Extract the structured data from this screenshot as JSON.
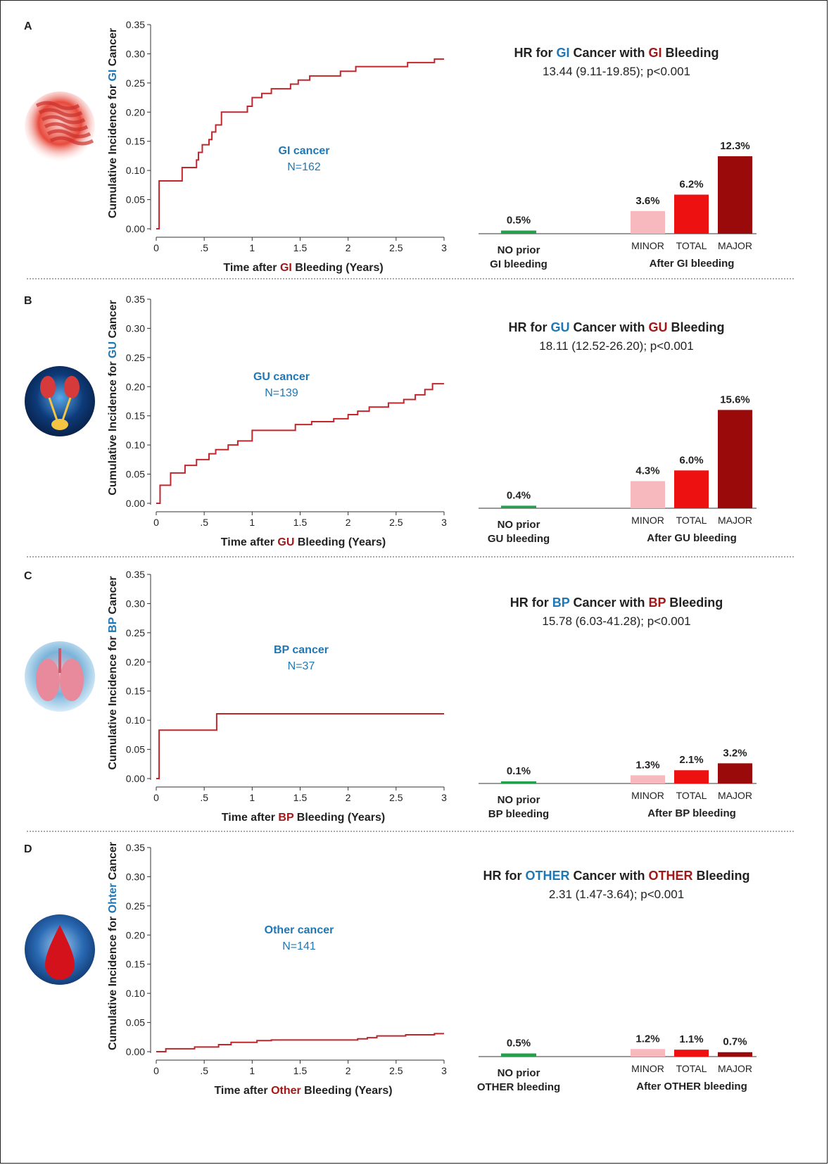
{
  "colors": {
    "km_line": "#c0272d",
    "cancer_label": "#1f77b4",
    "bleeding_word": "#a01818",
    "no_prior_bar": "#22a04b",
    "minor_bar": "#f7b8be",
    "total_bar": "#ee1111",
    "major_bar": "#9a0a0a",
    "axis": "#333333"
  },
  "chart_data": [
    {
      "panel": "A",
      "km": {
        "type": "line",
        "ylabel_parts": [
          "Cumulative Incidence for ",
          "GI",
          " Cancer"
        ],
        "xlabel_parts": [
          "Time after ",
          "GI",
          " Bleeding (Years)"
        ],
        "xticks": [
          0,
          0.5,
          1,
          1.5,
          2,
          2.5,
          3
        ],
        "xtick_labels": [
          "0",
          ".5",
          "1",
          "1.5",
          "2",
          "2.5",
          "3"
        ],
        "yticks": [
          0,
          0.05,
          0.1,
          0.15,
          0.2,
          0.25,
          0.3,
          0.35
        ],
        "ytick_labels": [
          "0.00",
          "0.05",
          "0.10",
          "0.15",
          "0.20",
          "0.25",
          "0.30",
          "0.35"
        ],
        "xlim": [
          0,
          3
        ],
        "ylim": [
          0,
          0.35
        ],
        "annotation": [
          "GI cancer",
          "N=162"
        ],
        "steps": [
          [
            0,
            0
          ],
          [
            0.03,
            0.082
          ],
          [
            0.27,
            0.105
          ],
          [
            0.42,
            0.118
          ],
          [
            0.44,
            0.131
          ],
          [
            0.48,
            0.144
          ],
          [
            0.55,
            0.153
          ],
          [
            0.58,
            0.166
          ],
          [
            0.62,
            0.178
          ],
          [
            0.68,
            0.2
          ],
          [
            0.95,
            0.21
          ],
          [
            1.0,
            0.225
          ],
          [
            1.1,
            0.232
          ],
          [
            1.2,
            0.24
          ],
          [
            1.4,
            0.248
          ],
          [
            1.48,
            0.255
          ],
          [
            1.6,
            0.262
          ],
          [
            1.92,
            0.27
          ],
          [
            2.08,
            0.278
          ],
          [
            2.62,
            0.285
          ],
          [
            2.9,
            0.291
          ],
          [
            3.0,
            0.291
          ]
        ]
      },
      "bars": {
        "type": "bar",
        "title_parts": [
          "HR for ",
          "GI",
          " Cancer with ",
          "GI",
          " Bleeding"
        ],
        "subtitle": "13.44 (9.11-19.85); p<0.001",
        "no_prior": {
          "value": 0.5,
          "label": "0.5%"
        },
        "no_prior_caption": [
          "NO prior",
          "GI bleeding"
        ],
        "categories": [
          "MINOR",
          "TOTAL",
          "MAJOR"
        ],
        "values": [
          3.6,
          6.2,
          12.3
        ],
        "value_labels": [
          "3.6%",
          "6.2%",
          "12.3%"
        ],
        "after_caption": "After GI bleeding"
      }
    },
    {
      "panel": "B",
      "km": {
        "type": "line",
        "ylabel_parts": [
          "Cumulative Incidence for ",
          "GU",
          " Cancer"
        ],
        "xlabel_parts": [
          "Time after ",
          "GU",
          " Bleeding (Years)"
        ],
        "xticks": [
          0,
          0.5,
          1,
          1.5,
          2,
          2.5,
          3
        ],
        "xtick_labels": [
          "0",
          ".5",
          "1",
          "1.5",
          "2",
          "2.5",
          "3"
        ],
        "yticks": [
          0,
          0.05,
          0.1,
          0.15,
          0.2,
          0.25,
          0.3,
          0.35
        ],
        "ytick_labels": [
          "0.00",
          "0.05",
          "0.10",
          "0.15",
          "0.20",
          "0.25",
          "0.30",
          "0.35"
        ],
        "xlim": [
          0,
          3
        ],
        "ylim": [
          0,
          0.35
        ],
        "annotation": [
          "GU cancer",
          "N=139"
        ],
        "steps": [
          [
            0,
            0
          ],
          [
            0.04,
            0.031
          ],
          [
            0.15,
            0.052
          ],
          [
            0.3,
            0.065
          ],
          [
            0.42,
            0.075
          ],
          [
            0.55,
            0.085
          ],
          [
            0.62,
            0.092
          ],
          [
            0.75,
            0.1
          ],
          [
            0.85,
            0.107
          ],
          [
            1.0,
            0.125
          ],
          [
            1.45,
            0.135
          ],
          [
            1.62,
            0.14
          ],
          [
            1.85,
            0.145
          ],
          [
            2.0,
            0.152
          ],
          [
            2.1,
            0.158
          ],
          [
            2.22,
            0.165
          ],
          [
            2.42,
            0.172
          ],
          [
            2.58,
            0.178
          ],
          [
            2.7,
            0.186
          ],
          [
            2.8,
            0.195
          ],
          [
            2.88,
            0.205
          ],
          [
            3.0,
            0.205
          ]
        ]
      },
      "bars": {
        "type": "bar",
        "title_parts": [
          "HR for ",
          "GU",
          " Cancer with ",
          "GU",
          " Bleeding"
        ],
        "subtitle": "18.11 (12.52-26.20); p<0.001",
        "no_prior": {
          "value": 0.4,
          "label": "0.4%"
        },
        "no_prior_caption": [
          "NO prior",
          "GU bleeding"
        ],
        "categories": [
          "MINOR",
          "TOTAL",
          "MAJOR"
        ],
        "values": [
          4.3,
          6.0,
          15.6
        ],
        "value_labels": [
          "4.3%",
          "6.0%",
          "15.6%"
        ],
        "after_caption": "After GU bleeding"
      }
    },
    {
      "panel": "C",
      "km": {
        "type": "line",
        "ylabel_parts": [
          "Cumulative Incidence for ",
          "BP",
          " Cancer"
        ],
        "xlabel_parts": [
          "Time after ",
          "BP",
          " Bleeding (Years)"
        ],
        "xticks": [
          0,
          0.5,
          1,
          1.5,
          2,
          2.5,
          3
        ],
        "xtick_labels": [
          "0",
          ".5",
          "1",
          "1.5",
          "2",
          "2.5",
          "3"
        ],
        "yticks": [
          0,
          0.05,
          0.1,
          0.15,
          0.2,
          0.25,
          0.3,
          0.35
        ],
        "ytick_labels": [
          "0.00",
          "0.05",
          "0.10",
          "0.15",
          "0.20",
          "0.25",
          "0.30",
          "0.35"
        ],
        "xlim": [
          0,
          3
        ],
        "ylim": [
          0,
          0.35
        ],
        "annotation": [
          "BP cancer",
          "N=37"
        ],
        "steps": [
          [
            0,
            0
          ],
          [
            0.03,
            0.083
          ],
          [
            0.63,
            0.111
          ],
          [
            3.0,
            0.111
          ]
        ]
      },
      "bars": {
        "type": "bar",
        "title_parts": [
          "HR for ",
          "BP",
          " Cancer with ",
          "BP",
          " Bleeding"
        ],
        "subtitle": "15.78 (6.03-41.28); p<0.001",
        "no_prior": {
          "value": 0.1,
          "label": "0.1%"
        },
        "no_prior_caption": [
          "NO prior",
          "BP bleeding"
        ],
        "categories": [
          "MINOR",
          "TOTAL",
          "MAJOR"
        ],
        "values": [
          1.3,
          2.1,
          3.2
        ],
        "value_labels": [
          "1.3%",
          "2.1%",
          "3.2%"
        ],
        "after_caption": "After BP bleeding"
      }
    },
    {
      "panel": "D",
      "km": {
        "type": "line",
        "ylabel_parts": [
          "Cumulative Incidence for ",
          "Ohter",
          " Cancer"
        ],
        "xlabel_parts": [
          "Time after ",
          "Other",
          " Bleeding (Years)"
        ],
        "xticks": [
          0,
          0.5,
          1,
          1.5,
          2,
          2.5,
          3
        ],
        "xtick_labels": [
          "0",
          ".5",
          "1",
          "1.5",
          "2",
          "2.5",
          "3"
        ],
        "yticks": [
          0,
          0.05,
          0.1,
          0.15,
          0.2,
          0.25,
          0.3,
          0.35
        ],
        "ytick_labels": [
          "0.00",
          "0.05",
          "0.10",
          "0.15",
          "0.20",
          "0.25",
          "0.30",
          "0.35"
        ],
        "xlim": [
          0,
          3
        ],
        "ylim": [
          0,
          0.35
        ],
        "annotation": [
          "Other cancer",
          "N=141"
        ],
        "steps": [
          [
            0,
            0
          ],
          [
            0.1,
            0.005
          ],
          [
            0.4,
            0.008
          ],
          [
            0.65,
            0.012
          ],
          [
            0.78,
            0.016
          ],
          [
            1.05,
            0.019
          ],
          [
            1.2,
            0.02
          ],
          [
            2.1,
            0.022
          ],
          [
            2.2,
            0.024
          ],
          [
            2.3,
            0.027
          ],
          [
            2.6,
            0.029
          ],
          [
            2.9,
            0.031
          ],
          [
            3.0,
            0.031
          ]
        ]
      },
      "bars": {
        "type": "bar",
        "title_parts": [
          "HR for ",
          "OTHER",
          " Cancer with ",
          "OTHER",
          " Bleeding"
        ],
        "subtitle": "2.31 (1.47-3.64); p<0.001",
        "no_prior": {
          "value": 0.5,
          "label": "0.5%"
        },
        "no_prior_caption": [
          "NO prior",
          "OTHER bleeding"
        ],
        "categories": [
          "MINOR",
          "TOTAL",
          "MAJOR"
        ],
        "values": [
          1.2,
          1.1,
          0.7
        ],
        "value_labels": [
          "1.2%",
          "1.1%",
          "0.7%"
        ],
        "after_caption": "After OTHER bleeding"
      }
    }
  ]
}
